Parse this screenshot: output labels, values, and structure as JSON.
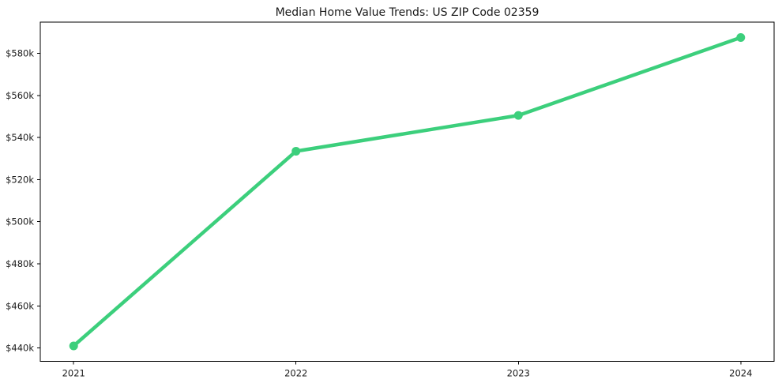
{
  "figure": {
    "background": "#ffffff"
  },
  "chart_data": {
    "type": "line",
    "title": "Median Home Value Trends: US ZIP Code 02359",
    "xlabel": "",
    "ylabel": "",
    "categories": [
      "2021",
      "2022",
      "2023",
      "2024"
    ],
    "x": [
      2021,
      2022,
      2023,
      2024
    ],
    "series": [
      {
        "name": "Median Home Value",
        "values": [
          441000,
          533500,
          550500,
          587500
        ],
        "color": "#3ccf7c",
        "marker": "circle"
      }
    ],
    "y_ticks": [
      {
        "value": 440000,
        "label": "$440k"
      },
      {
        "value": 460000,
        "label": "$460k"
      },
      {
        "value": 480000,
        "label": "$480k"
      },
      {
        "value": 500000,
        "label": "$500k"
      },
      {
        "value": 520000,
        "label": "$520k"
      },
      {
        "value": 540000,
        "label": "$540k"
      },
      {
        "value": 560000,
        "label": "$560k"
      },
      {
        "value": 580000,
        "label": "$580k"
      }
    ],
    "xlim": [
      2020.85,
      2024.15
    ],
    "ylim": [
      433675,
      594825
    ],
    "grid": false,
    "legend": "none",
    "axes_color": "#000000",
    "text_color": "#1a1a1a",
    "background": "#ffffff"
  }
}
